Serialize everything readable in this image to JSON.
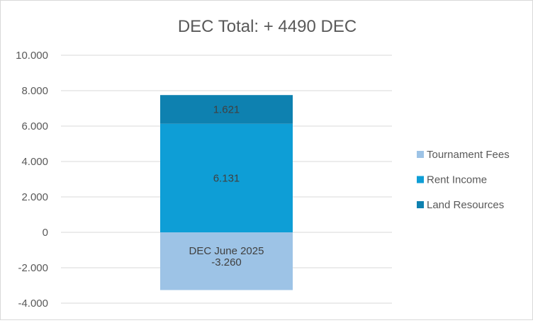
{
  "chart_data": {
    "type": "bar",
    "subtype": "stacked",
    "title": "DEC Total: + 4490 DEC",
    "category_label": "DEC June 2025",
    "xlabel": "",
    "ylabel": "",
    "ylim": [
      -4000,
      10000
    ],
    "y_ticks": [
      10000,
      8000,
      6000,
      4000,
      2000,
      0,
      -2000,
      -4000
    ],
    "y_tick_labels": [
      "10.000",
      "8.000",
      "6.000",
      "4.000",
      "2.000",
      "0",
      "-2.000",
      "-4.000"
    ],
    "grid": true,
    "legend_position": "right",
    "series": [
      {
        "name": "Tournament Fees",
        "value": -3260,
        "label": "-3.260",
        "color": "#9dc3e6"
      },
      {
        "name": "Rent Income",
        "value": 6131,
        "label": "6.131",
        "color": "#0e9ed6"
      },
      {
        "name": "Land Resources",
        "value": 1621,
        "label": "1.621",
        "color": "#0e81b0"
      }
    ]
  }
}
